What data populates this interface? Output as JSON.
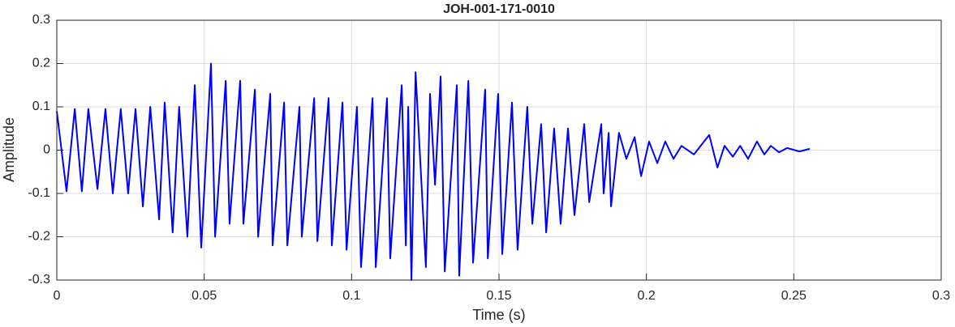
{
  "chart_data": {
    "type": "line",
    "title": "JOH-001-171-0010",
    "x_label": "Time (s)",
    "y_label": "Amplitude",
    "color": "#0000ff",
    "grid": true,
    "xlim": [
      0,
      0.3
    ],
    "xticks": [
      0,
      0.05,
      0.1,
      0.15,
      0.2,
      0.25,
      0.3
    ],
    "ylim": [
      -0.3,
      0.3
    ],
    "yticks": [
      -0.3,
      -0.2,
      -0.1,
      0,
      0.1,
      0.2,
      0.3
    ],
    "x": [
      0,
      0.0033,
      0.0061,
      0.0085,
      0.0107,
      0.0138,
      0.0165,
      0.019,
      0.0217,
      0.0242,
      0.0267,
      0.0292,
      0.0317,
      0.0347,
      0.0366,
      0.0393,
      0.0415,
      0.0443,
      0.0468,
      0.049,
      0.0523,
      0.0537,
      0.0573,
      0.0586,
      0.0622,
      0.0633,
      0.0672,
      0.0683,
      0.0724,
      0.0732,
      0.0771,
      0.0782,
      0.0823,
      0.0831,
      0.0873,
      0.0884,
      0.0922,
      0.0933,
      0.0969,
      0.0983,
      0.1018,
      0.1032,
      0.1071,
      0.1082,
      0.112,
      0.1131,
      0.117,
      0.1184,
      0.1192,
      0.1203,
      0.1217,
      0.1252,
      0.1266,
      0.1283,
      0.1302,
      0.1316,
      0.1357,
      0.1365,
      0.1396,
      0.1412,
      0.1453,
      0.1462,
      0.1497,
      0.1511,
      0.1544,
      0.1563,
      0.1596,
      0.1613,
      0.1643,
      0.166,
      0.1687,
      0.1709,
      0.1734,
      0.1756,
      0.1789,
      0.1806,
      0.1847,
      0.1855,
      0.1872,
      0.188,
      0.1907,
      0.1932,
      0.196,
      0.1982,
      0.2009,
      0.2037,
      0.2064,
      0.2092,
      0.2119,
      0.2161,
      0.2213,
      0.2241,
      0.2265,
      0.2293,
      0.2318,
      0.2345,
      0.2375,
      0.24,
      0.2422,
      0.245,
      0.2477,
      0.2519,
      0.2554
    ],
    "values": [
      0.09,
      -0.095,
      0.095,
      -0.095,
      0.095,
      -0.09,
      0.095,
      -0.1,
      0.095,
      -0.1,
      0.095,
      -0.13,
      0.1,
      -0.16,
      0.11,
      -0.19,
      0.1,
      -0.2,
      0.15,
      -0.225,
      0.2,
      -0.2,
      0.16,
      -0.17,
      0.16,
      -0.17,
      0.14,
      -0.2,
      0.13,
      -0.22,
      0.11,
      -0.22,
      0.1,
      -0.2,
      0.12,
      -0.21,
      0.12,
      -0.22,
      0.11,
      -0.23,
      0.1,
      -0.27,
      0.12,
      -0.27,
      0.12,
      -0.25,
      0.15,
      -0.22,
      0.1,
      -0.3,
      0.18,
      -0.27,
      0.13,
      -0.08,
      0.17,
      -0.28,
      0.15,
      -0.29,
      0.16,
      -0.26,
      0.14,
      -0.25,
      0.13,
      -0.24,
      0.11,
      -0.23,
      0.1,
      -0.17,
      0.06,
      -0.19,
      0.05,
      -0.17,
      0.05,
      -0.15,
      0.06,
      -0.12,
      0.06,
      -0.1,
      0.04,
      -0.13,
      0.04,
      -0.02,
      0.03,
      -0.06,
      0.02,
      -0.03,
      0.02,
      -0.02,
      0.01,
      -0.01,
      0.035,
      -0.04,
      0.01,
      -0.015,
      0.01,
      -0.02,
      0.02,
      -0.01,
      0.01,
      -0.005,
      0.005,
      -0.003,
      0.003
    ]
  }
}
